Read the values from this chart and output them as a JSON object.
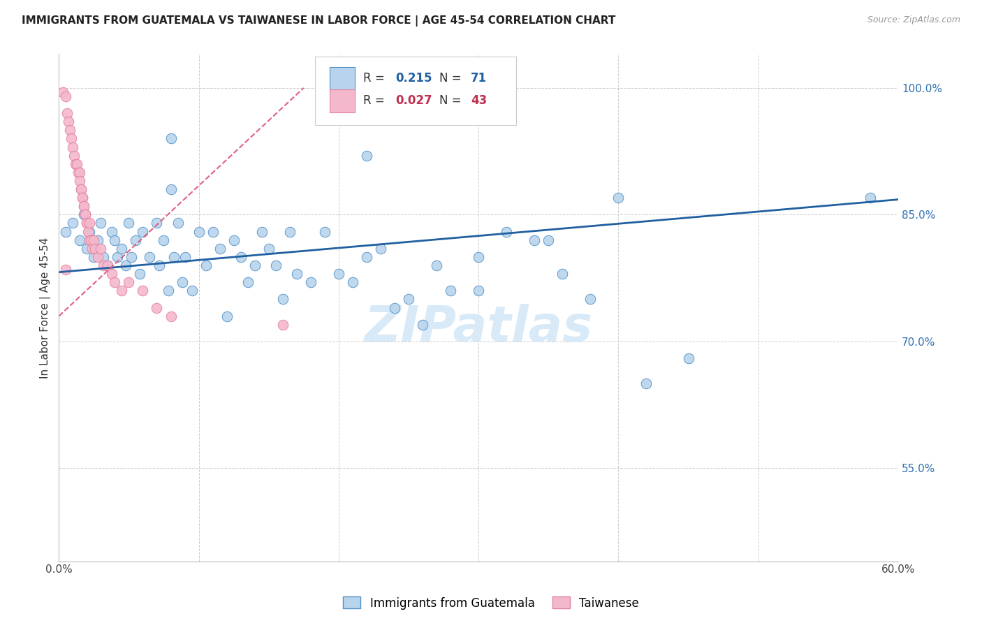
{
  "title": "IMMIGRANTS FROM GUATEMALA VS TAIWANESE IN LABOR FORCE | AGE 45-54 CORRELATION CHART",
  "source": "Source: ZipAtlas.com",
  "ylabel_left": "In Labor Force | Age 45-54",
  "xmin": 0.0,
  "xmax": 0.6,
  "ymin": 0.44,
  "ymax": 1.04,
  "right_yticks": [
    1.0,
    0.85,
    0.7,
    0.55
  ],
  "right_yticklabels": [
    "100.0%",
    "85.0%",
    "70.0%",
    "55.0%"
  ],
  "xticks": [
    0.0,
    0.1,
    0.2,
    0.3,
    0.4,
    0.5,
    0.6
  ],
  "color_blue": "#b8d4ec",
  "color_pink": "#f4b8cc",
  "color_blue_edge": "#5090c8",
  "color_pink_edge": "#e080a0",
  "color_blue_line": "#2060a0",
  "color_pink_line": "#e06080",
  "color_r_blue": "#2060a0",
  "color_r_pink": "#c03050",
  "watermark_color": "#d8eaf8",
  "blue_scatter_x": [
    0.005,
    0.01,
    0.015,
    0.018,
    0.02,
    0.022,
    0.025,
    0.028,
    0.03,
    0.032,
    0.035,
    0.038,
    0.04,
    0.042,
    0.045,
    0.048,
    0.05,
    0.052,
    0.055,
    0.058,
    0.06,
    0.065,
    0.07,
    0.072,
    0.075,
    0.078,
    0.08,
    0.082,
    0.085,
    0.088,
    0.09,
    0.095,
    0.1,
    0.105,
    0.11,
    0.115,
    0.12,
    0.125,
    0.13,
    0.135,
    0.14,
    0.145,
    0.15,
    0.155,
    0.16,
    0.165,
    0.17,
    0.18,
    0.19,
    0.2,
    0.21,
    0.22,
    0.23,
    0.24,
    0.25,
    0.26,
    0.27,
    0.28,
    0.3,
    0.32,
    0.34,
    0.36,
    0.38,
    0.4,
    0.42,
    0.45,
    0.3,
    0.22,
    0.08,
    0.58,
    0.35
  ],
  "blue_scatter_y": [
    0.83,
    0.84,
    0.82,
    0.85,
    0.81,
    0.83,
    0.8,
    0.82,
    0.84,
    0.8,
    0.79,
    0.83,
    0.82,
    0.8,
    0.81,
    0.79,
    0.84,
    0.8,
    0.82,
    0.78,
    0.83,
    0.8,
    0.84,
    0.79,
    0.82,
    0.76,
    0.88,
    0.8,
    0.84,
    0.77,
    0.8,
    0.76,
    0.83,
    0.79,
    0.83,
    0.81,
    0.73,
    0.82,
    0.8,
    0.77,
    0.79,
    0.83,
    0.81,
    0.79,
    0.75,
    0.83,
    0.78,
    0.77,
    0.83,
    0.78,
    0.77,
    0.8,
    0.81,
    0.74,
    0.75,
    0.72,
    0.79,
    0.76,
    0.8,
    0.83,
    0.82,
    0.78,
    0.75,
    0.87,
    0.65,
    0.68,
    0.76,
    0.92,
    0.94,
    0.87,
    0.82
  ],
  "pink_scatter_x": [
    0.003,
    0.005,
    0.006,
    0.007,
    0.008,
    0.009,
    0.01,
    0.011,
    0.012,
    0.013,
    0.014,
    0.015,
    0.015,
    0.016,
    0.016,
    0.017,
    0.017,
    0.018,
    0.018,
    0.019,
    0.019,
    0.02,
    0.02,
    0.021,
    0.022,
    0.022,
    0.023,
    0.024,
    0.025,
    0.026,
    0.028,
    0.03,
    0.032,
    0.035,
    0.038,
    0.04,
    0.045,
    0.05,
    0.06,
    0.07,
    0.005,
    0.08,
    0.16
  ],
  "pink_scatter_y": [
    0.995,
    0.99,
    0.97,
    0.96,
    0.95,
    0.94,
    0.93,
    0.92,
    0.91,
    0.91,
    0.9,
    0.9,
    0.89,
    0.88,
    0.88,
    0.87,
    0.87,
    0.86,
    0.86,
    0.85,
    0.85,
    0.84,
    0.84,
    0.83,
    0.84,
    0.82,
    0.82,
    0.81,
    0.82,
    0.81,
    0.8,
    0.81,
    0.79,
    0.79,
    0.78,
    0.77,
    0.76,
    0.77,
    0.76,
    0.74,
    0.785,
    0.73,
    0.72
  ],
  "blue_line_x": [
    0.0,
    0.6
  ],
  "blue_line_y": [
    0.782,
    0.868
  ],
  "pink_line_x": [
    0.0,
    0.175
  ],
  "pink_line_y": [
    0.73,
    1.0
  ]
}
